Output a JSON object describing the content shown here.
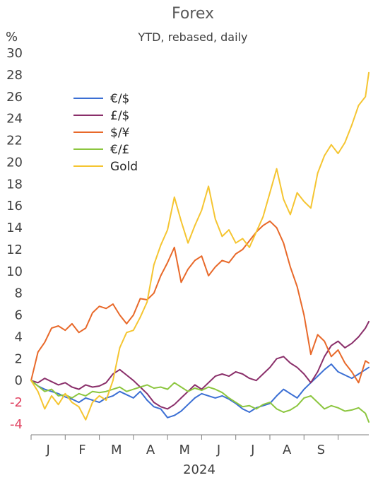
{
  "chart_data": {
    "type": "line",
    "title": "Forex",
    "subtitle": "YTD, rebased, daily",
    "yunit": "%",
    "ylim": [
      -4,
      30
    ],
    "yticks": [
      -4,
      -2,
      0,
      2,
      4,
      6,
      8,
      10,
      12,
      14,
      16,
      18,
      20,
      22,
      24,
      26,
      28,
      30
    ],
    "month_labels": [
      "J",
      "F",
      "M",
      "A",
      "M",
      "J",
      "J",
      "A",
      "S"
    ],
    "xlabel": "2024",
    "grid": false,
    "legend_position": "top-left",
    "x_end_month": 9.9,
    "series": [
      {
        "name": "€/$",
        "color": "#3b6fd4",
        "points": [
          [
            0,
            0
          ],
          [
            0.2,
            -0.5
          ],
          [
            0.4,
            -0.8
          ],
          [
            0.6,
            -1.0
          ],
          [
            0.8,
            -1.2
          ],
          [
            1.0,
            -1.5
          ],
          [
            1.2,
            -1.7
          ],
          [
            1.4,
            -2.0
          ],
          [
            1.6,
            -1.6
          ],
          [
            1.8,
            -1.8
          ],
          [
            2.0,
            -2.0
          ],
          [
            2.2,
            -1.6
          ],
          [
            2.4,
            -1.4
          ],
          [
            2.6,
            -1.0
          ],
          [
            2.8,
            -1.3
          ],
          [
            3.0,
            -1.6
          ],
          [
            3.2,
            -1.0
          ],
          [
            3.4,
            -1.8
          ],
          [
            3.6,
            -2.4
          ],
          [
            3.8,
            -2.6
          ],
          [
            4.0,
            -3.4
          ],
          [
            4.2,
            -3.2
          ],
          [
            4.4,
            -2.8
          ],
          [
            4.6,
            -2.2
          ],
          [
            4.8,
            -1.6
          ],
          [
            5.0,
            -1.2
          ],
          [
            5.2,
            -1.4
          ],
          [
            5.4,
            -1.6
          ],
          [
            5.6,
            -1.4
          ],
          [
            5.8,
            -1.7
          ],
          [
            6.0,
            -2.1
          ],
          [
            6.2,
            -2.6
          ],
          [
            6.4,
            -2.9
          ],
          [
            6.6,
            -2.5
          ],
          [
            6.8,
            -2.3
          ],
          [
            7.0,
            -2.1
          ],
          [
            7.2,
            -1.4
          ],
          [
            7.4,
            -0.8
          ],
          [
            7.6,
            -1.2
          ],
          [
            7.8,
            -1.6
          ],
          [
            8.0,
            -0.8
          ],
          [
            8.2,
            -0.2
          ],
          [
            8.4,
            0.4
          ],
          [
            8.6,
            1.0
          ],
          [
            8.8,
            1.5
          ],
          [
            9.0,
            0.8
          ],
          [
            9.2,
            0.5
          ],
          [
            9.4,
            0.2
          ],
          [
            9.6,
            0.6
          ],
          [
            9.8,
            1.0
          ],
          [
            9.9,
            1.2
          ]
        ]
      },
      {
        "name": "£/$",
        "color": "#8a2f6a",
        "points": [
          [
            0,
            0
          ],
          [
            0.2,
            -0.2
          ],
          [
            0.4,
            0.2
          ],
          [
            0.6,
            -0.1
          ],
          [
            0.8,
            -0.4
          ],
          [
            1.0,
            -0.2
          ],
          [
            1.2,
            -0.6
          ],
          [
            1.4,
            -0.8
          ],
          [
            1.6,
            -0.4
          ],
          [
            1.8,
            -0.6
          ],
          [
            2.0,
            -0.5
          ],
          [
            2.2,
            -0.2
          ],
          [
            2.4,
            0.6
          ],
          [
            2.6,
            1.0
          ],
          [
            2.8,
            0.5
          ],
          [
            3.0,
            0.0
          ],
          [
            3.2,
            -0.6
          ],
          [
            3.4,
            -1.2
          ],
          [
            3.6,
            -2.0
          ],
          [
            3.8,
            -2.4
          ],
          [
            4.0,
            -2.6
          ],
          [
            4.2,
            -2.2
          ],
          [
            4.4,
            -1.6
          ],
          [
            4.6,
            -1.0
          ],
          [
            4.8,
            -0.4
          ],
          [
            5.0,
            -0.8
          ],
          [
            5.2,
            -0.2
          ],
          [
            5.4,
            0.4
          ],
          [
            5.6,
            0.6
          ],
          [
            5.8,
            0.4
          ],
          [
            6.0,
            0.8
          ],
          [
            6.2,
            0.6
          ],
          [
            6.4,
            0.2
          ],
          [
            6.6,
            0.0
          ],
          [
            6.8,
            0.6
          ],
          [
            7.0,
            1.2
          ],
          [
            7.2,
            2.0
          ],
          [
            7.4,
            2.2
          ],
          [
            7.6,
            1.6
          ],
          [
            7.8,
            1.2
          ],
          [
            8.0,
            0.6
          ],
          [
            8.2,
            -0.2
          ],
          [
            8.4,
            0.8
          ],
          [
            8.6,
            2.2
          ],
          [
            8.8,
            3.2
          ],
          [
            9.0,
            3.6
          ],
          [
            9.2,
            3.0
          ],
          [
            9.4,
            3.4
          ],
          [
            9.6,
            4.0
          ],
          [
            9.8,
            4.8
          ],
          [
            9.9,
            5.4
          ]
        ]
      },
      {
        "name": "$/¥",
        "color": "#e8692a",
        "points": [
          [
            0,
            0
          ],
          [
            0.2,
            2.6
          ],
          [
            0.4,
            3.5
          ],
          [
            0.6,
            4.8
          ],
          [
            0.8,
            5.0
          ],
          [
            1.0,
            4.6
          ],
          [
            1.2,
            5.2
          ],
          [
            1.4,
            4.4
          ],
          [
            1.6,
            4.8
          ],
          [
            1.8,
            6.2
          ],
          [
            2.0,
            6.8
          ],
          [
            2.2,
            6.6
          ],
          [
            2.4,
            7.0
          ],
          [
            2.6,
            6.0
          ],
          [
            2.8,
            5.2
          ],
          [
            3.0,
            6.0
          ],
          [
            3.2,
            7.5
          ],
          [
            3.4,
            7.4
          ],
          [
            3.6,
            8.0
          ],
          [
            3.8,
            9.6
          ],
          [
            4.0,
            10.8
          ],
          [
            4.2,
            12.2
          ],
          [
            4.4,
            9.0
          ],
          [
            4.6,
            10.2
          ],
          [
            4.8,
            11.0
          ],
          [
            5.0,
            11.4
          ],
          [
            5.2,
            9.6
          ],
          [
            5.4,
            10.4
          ],
          [
            5.6,
            11.0
          ],
          [
            5.8,
            10.8
          ],
          [
            6.0,
            11.6
          ],
          [
            6.2,
            12.0
          ],
          [
            6.4,
            12.8
          ],
          [
            6.6,
            13.6
          ],
          [
            6.8,
            14.2
          ],
          [
            7.0,
            14.6
          ],
          [
            7.2,
            14.0
          ],
          [
            7.4,
            12.6
          ],
          [
            7.6,
            10.4
          ],
          [
            7.8,
            8.6
          ],
          [
            8.0,
            6.0
          ],
          [
            8.2,
            2.4
          ],
          [
            8.4,
            4.2
          ],
          [
            8.6,
            3.6
          ],
          [
            8.8,
            2.2
          ],
          [
            9.0,
            2.8
          ],
          [
            9.2,
            1.6
          ],
          [
            9.4,
            0.8
          ],
          [
            9.6,
            -0.2
          ],
          [
            9.8,
            1.8
          ],
          [
            9.9,
            1.6
          ]
        ]
      },
      {
        "name": "€/£",
        "color": "#8cc63f",
        "points": [
          [
            0,
            0
          ],
          [
            0.2,
            -0.5
          ],
          [
            0.4,
            -1.0
          ],
          [
            0.6,
            -0.8
          ],
          [
            0.8,
            -1.4
          ],
          [
            1.0,
            -1.3
          ],
          [
            1.2,
            -1.6
          ],
          [
            1.4,
            -1.2
          ],
          [
            1.6,
            -1.4
          ],
          [
            1.8,
            -1.0
          ],
          [
            2.0,
            -1.1
          ],
          [
            2.2,
            -1.0
          ],
          [
            2.4,
            -0.8
          ],
          [
            2.6,
            -0.6
          ],
          [
            2.8,
            -1.0
          ],
          [
            3.0,
            -0.8
          ],
          [
            3.2,
            -0.6
          ],
          [
            3.4,
            -0.4
          ],
          [
            3.6,
            -0.7
          ],
          [
            3.8,
            -0.6
          ],
          [
            4.0,
            -0.8
          ],
          [
            4.2,
            -0.2
          ],
          [
            4.4,
            -0.6
          ],
          [
            4.6,
            -1.0
          ],
          [
            4.8,
            -0.7
          ],
          [
            5.0,
            -0.9
          ],
          [
            5.2,
            -0.6
          ],
          [
            5.4,
            -0.8
          ],
          [
            5.6,
            -1.1
          ],
          [
            5.8,
            -1.6
          ],
          [
            6.0,
            -2.0
          ],
          [
            6.2,
            -2.4
          ],
          [
            6.4,
            -2.3
          ],
          [
            6.6,
            -2.6
          ],
          [
            6.8,
            -2.2
          ],
          [
            7.0,
            -2.0
          ],
          [
            7.2,
            -2.6
          ],
          [
            7.4,
            -2.9
          ],
          [
            7.6,
            -2.7
          ],
          [
            7.8,
            -2.3
          ],
          [
            8.0,
            -1.6
          ],
          [
            8.2,
            -1.4
          ],
          [
            8.4,
            -2.0
          ],
          [
            8.6,
            -2.6
          ],
          [
            8.8,
            -2.3
          ],
          [
            9.0,
            -2.5
          ],
          [
            9.2,
            -2.8
          ],
          [
            9.4,
            -2.7
          ],
          [
            9.6,
            -2.5
          ],
          [
            9.8,
            -3.0
          ],
          [
            9.9,
            -3.8
          ]
        ]
      },
      {
        "name": "Gold",
        "color": "#f5c531",
        "points": [
          [
            0,
            0
          ],
          [
            0.2,
            -1.0
          ],
          [
            0.4,
            -2.6
          ],
          [
            0.6,
            -1.4
          ],
          [
            0.8,
            -2.2
          ],
          [
            1.0,
            -1.2
          ],
          [
            1.2,
            -2.0
          ],
          [
            1.4,
            -2.4
          ],
          [
            1.6,
            -3.6
          ],
          [
            1.8,
            -2.0
          ],
          [
            2.0,
            -1.4
          ],
          [
            2.2,
            -1.8
          ],
          [
            2.4,
            0.0
          ],
          [
            2.6,
            3.0
          ],
          [
            2.8,
            4.4
          ],
          [
            3.0,
            4.6
          ],
          [
            3.2,
            5.8
          ],
          [
            3.4,
            7.2
          ],
          [
            3.6,
            10.6
          ],
          [
            3.8,
            12.4
          ],
          [
            4.0,
            13.8
          ],
          [
            4.2,
            16.8
          ],
          [
            4.4,
            14.6
          ],
          [
            4.6,
            12.6
          ],
          [
            4.8,
            14.2
          ],
          [
            5.0,
            15.6
          ],
          [
            5.2,
            17.8
          ],
          [
            5.4,
            14.8
          ],
          [
            5.6,
            13.2
          ],
          [
            5.8,
            13.8
          ],
          [
            6.0,
            12.6
          ],
          [
            6.2,
            13.0
          ],
          [
            6.4,
            12.2
          ],
          [
            6.6,
            13.6
          ],
          [
            6.8,
            15.0
          ],
          [
            7.0,
            17.2
          ],
          [
            7.2,
            19.4
          ],
          [
            7.4,
            16.6
          ],
          [
            7.6,
            15.2
          ],
          [
            7.8,
            17.2
          ],
          [
            8.0,
            16.4
          ],
          [
            8.2,
            15.8
          ],
          [
            8.4,
            19.0
          ],
          [
            8.6,
            20.6
          ],
          [
            8.8,
            21.6
          ],
          [
            9.0,
            20.8
          ],
          [
            9.2,
            21.8
          ],
          [
            9.4,
            23.4
          ],
          [
            9.6,
            25.2
          ],
          [
            9.8,
            26.0
          ],
          [
            9.9,
            28.2
          ]
        ]
      }
    ]
  }
}
